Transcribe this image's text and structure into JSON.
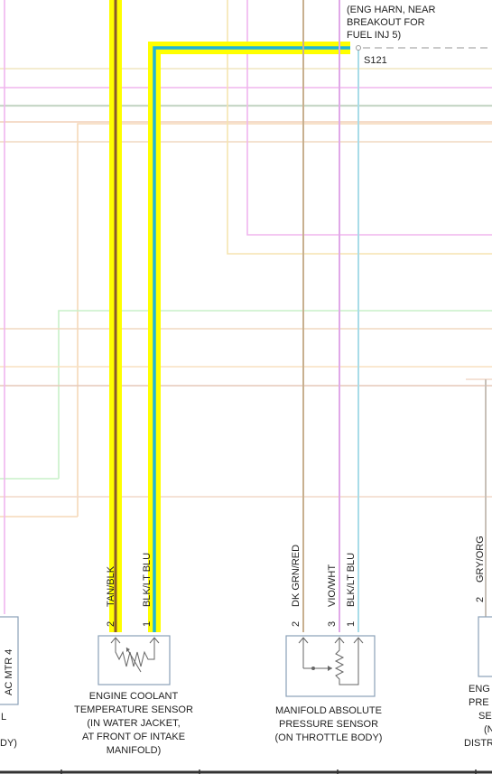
{
  "splice": {
    "note_lines": [
      "(ENG HARN, NEAR",
      "BREAKOUT FOR",
      "FUEL INJ 5)"
    ],
    "id": "S121"
  },
  "ect_sensor": {
    "caption_lines": [
      "ENGINE COOLANT",
      "TEMPERATURE SENSOR",
      "(IN WATER JACKET,",
      "AT FRONT OF INTAKE",
      "MANIFOLD)"
    ],
    "pins": [
      {
        "pin": "2",
        "wire": "TAN/BLK"
      },
      {
        "pin": "1",
        "wire": "BLK/LT BLU"
      }
    ]
  },
  "map_sensor": {
    "caption_lines": [
      "MANIFOLD ABSOLUTE",
      "PRESSURE SENSOR",
      "(ON THROTTLE BODY)"
    ],
    "pins": [
      {
        "pin": "2",
        "wire": "DK GRN/RED"
      },
      {
        "pin": "3",
        "wire": "VIO/WHT"
      },
      {
        "pin": "1",
        "wire": "BLK/LT BLU"
      }
    ]
  },
  "right_sensor_partial": {
    "pin": "2",
    "wire": "GRY/ORG",
    "caption_fragments": [
      "ENG",
      "PRE",
      "SE",
      "(N",
      "DISTR"
    ]
  },
  "left_component_partial": {
    "vertical_text": "AC MTR 4",
    "caption_fragments": [
      "L",
      "DY)"
    ]
  },
  "colors": {
    "highlight": "#ffff00",
    "tan_blk_wire": "#8b5a2b",
    "blk_lt_blu_wire": "#1fb5d8",
    "connector": "#8aa0b8"
  }
}
